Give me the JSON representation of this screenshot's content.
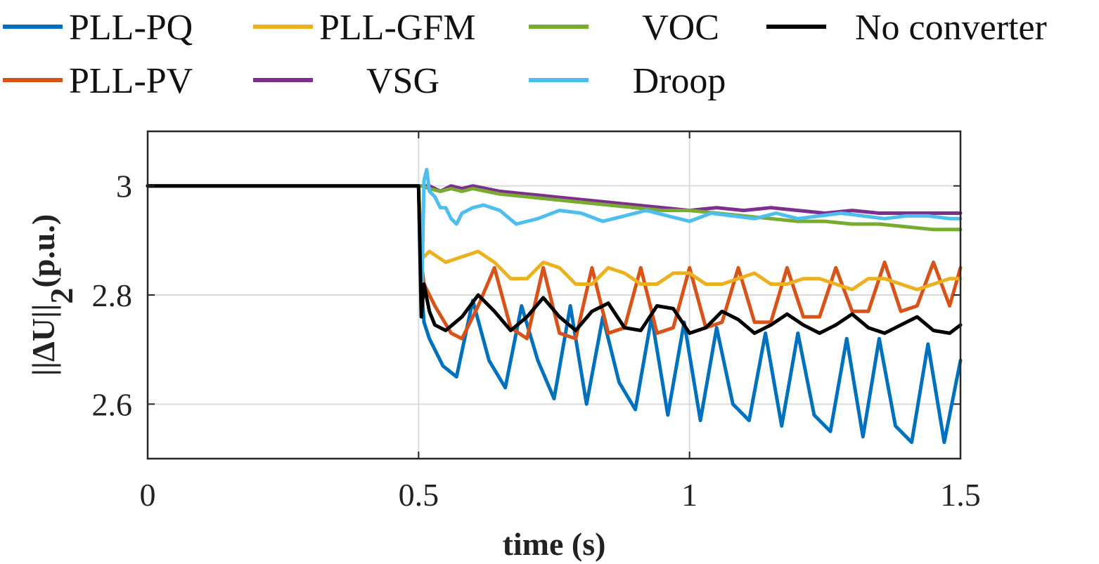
{
  "chart_data": {
    "type": "line",
    "title": "",
    "xlabel": "time (s)",
    "ylabel_main": "||ΔU||",
    "ylabel_sub": "2",
    "ylabel_unit": "(p.u.)",
    "xlim": [
      0,
      1.5
    ],
    "ylim": [
      2.5,
      3.1
    ],
    "xticks": [
      0,
      0.5,
      1,
      1.5
    ],
    "xtick_labels": [
      "0",
      "0.5",
      "1",
      "1.5"
    ],
    "yticks": [
      2.6,
      2.8,
      3.0
    ],
    "ytick_labels": [
      "2.6",
      "2.8",
      "3"
    ],
    "grid": true,
    "legend_position": "top, outside plot",
    "series": [
      {
        "name": "PLL-PQ",
        "color": "#0072BD",
        "x": [
          0,
          0.5,
          0.505,
          0.51,
          0.52,
          0.545,
          0.57,
          0.6,
          0.63,
          0.66,
          0.69,
          0.72,
          0.75,
          0.78,
          0.81,
          0.84,
          0.87,
          0.9,
          0.93,
          0.96,
          0.99,
          1.02,
          1.05,
          1.08,
          1.11,
          1.14,
          1.17,
          1.2,
          1.23,
          1.26,
          1.29,
          1.32,
          1.35,
          1.38,
          1.41,
          1.44,
          1.47,
          1.5
        ],
        "values": [
          3.0,
          3.0,
          2.82,
          2.75,
          2.72,
          2.67,
          2.65,
          2.79,
          2.68,
          2.63,
          2.78,
          2.68,
          2.61,
          2.78,
          2.6,
          2.76,
          2.64,
          2.59,
          2.76,
          2.58,
          2.75,
          2.57,
          2.74,
          2.6,
          2.57,
          2.73,
          2.56,
          2.73,
          2.58,
          2.55,
          2.72,
          2.54,
          2.72,
          2.56,
          2.53,
          2.71,
          2.53,
          2.68
        ]
      },
      {
        "name": "PLL-PV",
        "color": "#D95319",
        "x": [
          0,
          0.5,
          0.505,
          0.51,
          0.53,
          0.56,
          0.58,
          0.61,
          0.64,
          0.67,
          0.7,
          0.73,
          0.76,
          0.79,
          0.82,
          0.85,
          0.88,
          0.91,
          0.94,
          0.97,
          1.0,
          1.03,
          1.06,
          1.09,
          1.12,
          1.15,
          1.18,
          1.21,
          1.24,
          1.27,
          1.3,
          1.33,
          1.36,
          1.39,
          1.42,
          1.45,
          1.48,
          1.5
        ],
        "values": [
          3.0,
          3.0,
          2.86,
          2.82,
          2.78,
          2.73,
          2.72,
          2.78,
          2.85,
          2.74,
          2.72,
          2.85,
          2.73,
          2.72,
          2.85,
          2.73,
          2.74,
          2.85,
          2.73,
          2.74,
          2.85,
          2.74,
          2.75,
          2.85,
          2.75,
          2.75,
          2.85,
          2.76,
          2.76,
          2.85,
          2.77,
          2.77,
          2.86,
          2.77,
          2.78,
          2.86,
          2.78,
          2.85
        ]
      },
      {
        "name": "PLL-GFM",
        "color": "#EDB120",
        "x": [
          0,
          0.5,
          0.505,
          0.51,
          0.52,
          0.55,
          0.58,
          0.61,
          0.64,
          0.67,
          0.7,
          0.73,
          0.76,
          0.79,
          0.82,
          0.85,
          0.88,
          0.91,
          0.94,
          0.97,
          1.0,
          1.03,
          1.06,
          1.09,
          1.12,
          1.15,
          1.18,
          1.21,
          1.24,
          1.27,
          1.3,
          1.33,
          1.36,
          1.39,
          1.42,
          1.45,
          1.48,
          1.5
        ],
        "values": [
          3.0,
          3.0,
          2.88,
          2.87,
          2.88,
          2.86,
          2.87,
          2.88,
          2.86,
          2.83,
          2.83,
          2.86,
          2.85,
          2.82,
          2.82,
          2.85,
          2.84,
          2.82,
          2.82,
          2.84,
          2.84,
          2.82,
          2.82,
          2.83,
          2.84,
          2.82,
          2.82,
          2.83,
          2.83,
          2.82,
          2.81,
          2.83,
          2.83,
          2.82,
          2.81,
          2.82,
          2.83,
          2.83
        ]
      },
      {
        "name": "VSG",
        "color": "#7E2F8E",
        "x": [
          0,
          0.5,
          0.505,
          0.52,
          0.54,
          0.56,
          0.58,
          0.6,
          0.65,
          0.7,
          0.75,
          0.8,
          0.85,
          0.9,
          0.95,
          1.0,
          1.05,
          1.1,
          1.15,
          1.2,
          1.25,
          1.3,
          1.35,
          1.4,
          1.45,
          1.5
        ],
        "values": [
          3.0,
          3.0,
          3.0,
          3.0,
          2.99,
          3.0,
          2.995,
          3.0,
          2.99,
          2.985,
          2.98,
          2.975,
          2.97,
          2.965,
          2.96,
          2.955,
          2.96,
          2.955,
          2.96,
          2.955,
          2.95,
          2.955,
          2.95,
          2.95,
          2.95,
          2.95
        ]
      },
      {
        "name": "VOC",
        "color": "#77AC30",
        "x": [
          0,
          0.5,
          0.505,
          0.52,
          0.54,
          0.56,
          0.58,
          0.6,
          0.65,
          0.7,
          0.75,
          0.8,
          0.85,
          0.9,
          0.95,
          1.0,
          1.05,
          1.1,
          1.15,
          1.2,
          1.25,
          1.3,
          1.35,
          1.4,
          1.45,
          1.5
        ],
        "values": [
          3.0,
          3.0,
          3.0,
          2.995,
          2.99,
          2.995,
          2.99,
          2.995,
          2.985,
          2.98,
          2.975,
          2.97,
          2.965,
          2.96,
          2.955,
          2.955,
          2.95,
          2.945,
          2.94,
          2.935,
          2.935,
          2.93,
          2.93,
          2.925,
          2.92,
          2.92
        ]
      },
      {
        "name": "Droop",
        "color": "#4DBEEE",
        "x": [
          0,
          0.5,
          0.505,
          0.51,
          0.515,
          0.52,
          0.53,
          0.54,
          0.55,
          0.56,
          0.57,
          0.58,
          0.6,
          0.62,
          0.65,
          0.68,
          0.72,
          0.76,
          0.8,
          0.84,
          0.88,
          0.92,
          0.96,
          1.0,
          1.04,
          1.08,
          1.12,
          1.16,
          1.2,
          1.24,
          1.28,
          1.32,
          1.36,
          1.4,
          1.44,
          1.48,
          1.5
        ],
        "values": [
          3.0,
          3.0,
          2.76,
          3.01,
          3.03,
          2.99,
          2.98,
          2.96,
          2.96,
          2.94,
          2.93,
          2.95,
          2.96,
          2.965,
          2.955,
          2.93,
          2.94,
          2.955,
          2.95,
          2.935,
          2.945,
          2.955,
          2.945,
          2.935,
          2.95,
          2.945,
          2.94,
          2.95,
          2.94,
          2.945,
          2.95,
          2.945,
          2.94,
          2.945,
          2.945,
          2.94,
          2.94
        ]
      },
      {
        "name": "No converter",
        "color": "#000000",
        "x": [
          0,
          0.5,
          0.505,
          0.51,
          0.52,
          0.53,
          0.55,
          0.58,
          0.61,
          0.64,
          0.67,
          0.7,
          0.73,
          0.76,
          0.79,
          0.82,
          0.85,
          0.88,
          0.91,
          0.94,
          0.97,
          1.0,
          1.03,
          1.06,
          1.09,
          1.12,
          1.15,
          1.18,
          1.21,
          1.24,
          1.27,
          1.3,
          1.33,
          1.36,
          1.39,
          1.42,
          1.45,
          1.48,
          1.5
        ],
        "values": [
          3.0,
          3.0,
          2.76,
          2.82,
          2.77,
          2.745,
          2.735,
          2.76,
          2.8,
          2.77,
          2.735,
          2.76,
          2.795,
          2.76,
          2.735,
          2.77,
          2.785,
          2.74,
          2.735,
          2.78,
          2.775,
          2.73,
          2.74,
          2.77,
          2.755,
          2.73,
          2.745,
          2.765,
          2.745,
          2.73,
          2.745,
          2.765,
          2.74,
          2.73,
          2.745,
          2.76,
          2.735,
          2.73,
          2.745
        ]
      }
    ]
  }
}
